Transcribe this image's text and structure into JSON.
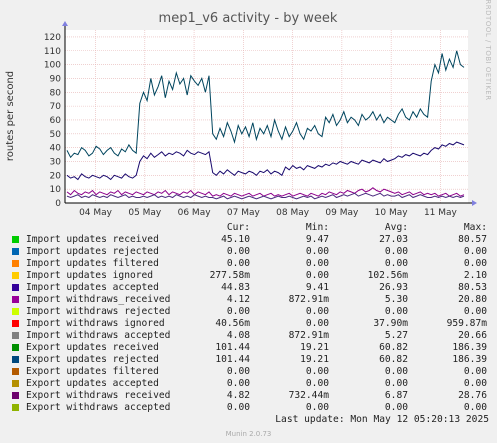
{
  "chart_data": {
    "type": "line",
    "title": "mep1_v6 activity - by week",
    "ylabel": "routes per second",
    "ylim": [
      0,
      125
    ],
    "yticks": [
      0,
      10,
      20,
      30,
      40,
      50,
      60,
      70,
      80,
      90,
      100,
      110,
      120
    ],
    "xticks": [
      "04 May",
      "05 May",
      "06 May",
      "07 May",
      "08 May",
      "09 May",
      "10 May",
      "11 May"
    ],
    "grid": true,
    "series": [
      {
        "name": "Export updates rejected",
        "color": "#00455e",
        "values": [
          38,
          33,
          36,
          35,
          40,
          38,
          34,
          36,
          41,
          39,
          35,
          38,
          40,
          36,
          34,
          39,
          37,
          42,
          38,
          36,
          72,
          80,
          74,
          90,
          78,
          84,
          92,
          76,
          88,
          82,
          94,
          86,
          90,
          78,
          92,
          88,
          85,
          90,
          80,
          92,
          50,
          46,
          54,
          48,
          58,
          52,
          44,
          56,
          50,
          55,
          48,
          58,
          46,
          54,
          50,
          56,
          48,
          60,
          52,
          46,
          55,
          48,
          52,
          58,
          50,
          46,
          54,
          52,
          56,
          50,
          48,
          62,
          58,
          64,
          56,
          60,
          66,
          58,
          62,
          60,
          56,
          64,
          60,
          62,
          66,
          60,
          64,
          58,
          62,
          60,
          58,
          64,
          68,
          62,
          60,
          66,
          62,
          68,
          64,
          62,
          88,
          100,
          94,
          108,
          96,
          104,
          98,
          110,
          100,
          98
        ]
      },
      {
        "name": "Import updates accepted",
        "color": "#1a0a6e",
        "values": [
          20,
          18,
          19,
          17,
          21,
          19,
          18,
          20,
          19,
          18,
          20,
          19,
          17,
          20,
          19,
          18,
          21,
          19,
          18,
          20,
          30,
          34,
          32,
          36,
          33,
          35,
          37,
          34,
          36,
          35,
          37,
          36,
          34,
          38,
          36,
          35,
          37,
          36,
          35,
          37,
          22,
          20,
          23,
          21,
          24,
          22,
          20,
          23,
          22,
          21,
          23,
          22,
          20,
          23,
          22,
          24,
          21,
          23,
          22,
          20,
          26,
          24,
          27,
          25,
          26,
          24,
          27,
          26,
          25,
          27,
          26,
          28,
          27,
          29,
          28,
          30,
          29,
          28,
          30,
          29,
          28,
          31,
          30,
          29,
          31,
          30,
          29,
          32,
          30,
          31,
          32,
          34,
          33,
          35,
          34,
          36,
          35,
          34,
          36,
          35,
          38,
          40,
          39,
          42,
          41,
          43,
          42,
          44,
          43,
          42
        ]
      },
      {
        "name": "Import withdraws_received",
        "color": "#8c008c",
        "values": [
          8,
          6,
          9,
          7,
          6,
          8,
          7,
          9,
          6,
          8,
          7,
          6,
          8,
          7,
          9,
          6,
          8,
          7,
          6,
          8,
          7,
          6,
          8,
          7,
          6,
          8,
          7,
          9,
          6,
          8,
          7,
          6,
          8,
          7,
          9,
          6,
          8,
          7,
          6,
          8,
          5,
          6,
          5,
          7,
          6,
          5,
          7,
          6,
          5,
          6,
          7,
          5,
          6,
          7,
          5,
          6,
          7,
          5,
          6,
          5,
          6,
          7,
          5,
          6,
          7,
          6,
          5,
          7,
          6,
          5,
          7,
          6,
          8,
          7,
          6,
          8,
          7,
          9,
          8,
          7,
          9,
          10,
          8,
          9,
          11,
          9,
          8,
          10,
          9,
          8,
          7,
          8,
          6,
          7,
          8,
          6,
          7,
          8,
          6,
          7,
          6,
          7,
          5,
          6,
          7,
          5,
          6,
          7,
          5,
          6
        ]
      },
      {
        "name": "Export withdraws received",
        "color": "#4a2a7e",
        "values": [
          5,
          4,
          5,
          6,
          4,
          5,
          4,
          6,
          5,
          4,
          5,
          4,
          6,
          5,
          4,
          5,
          6,
          4,
          5,
          4,
          4,
          5,
          4,
          5,
          6,
          4,
          5,
          4,
          5,
          4,
          6,
          5,
          4,
          5,
          4,
          6,
          5,
          4,
          5,
          4,
          4,
          3,
          4,
          5,
          3,
          4,
          5,
          4,
          3,
          4,
          5,
          4,
          3,
          4,
          5,
          4,
          3,
          4,
          5,
          4,
          4,
          5,
          4,
          3,
          4,
          5,
          4,
          5,
          3,
          4,
          5,
          4,
          5,
          6,
          4,
          5,
          6,
          5,
          6,
          7,
          5,
          6,
          7,
          6,
          5,
          6,
          7,
          5,
          6,
          5,
          5,
          6,
          4,
          5,
          6,
          4,
          5,
          6,
          5,
          4,
          4,
          5,
          4,
          5,
          4,
          5,
          4,
          5,
          4,
          5
        ]
      }
    ]
  },
  "side_text": "RRDTOOL / TOBI OETIKER",
  "legend": {
    "headers": {
      "cur": "Cur:",
      "min": "Min:",
      "avg": "Avg:",
      "max": "Max:"
    },
    "rows": [
      {
        "name": "Import updates received",
        "color": "#00cc00",
        "cur": "45.10",
        "min": "9.47",
        "avg": "27.03",
        "max": "80.57"
      },
      {
        "name": "Import updates rejected",
        "color": "#0066b3",
        "cur": "0.00",
        "min": "0.00",
        "avg": "0.00",
        "max": "0.00"
      },
      {
        "name": "Import updates filtered",
        "color": "#ff8000",
        "cur": "0.00",
        "min": "0.00",
        "avg": "0.00",
        "max": "0.00"
      },
      {
        "name": "Import updates ignored",
        "color": "#ffcc00",
        "cur": "277.58m",
        "min": "0.00",
        "avg": "102.56m",
        "max": "2.10"
      },
      {
        "name": "Import updates accepted",
        "color": "#330099",
        "cur": "44.83",
        "min": "9.41",
        "avg": "26.93",
        "max": "80.53"
      },
      {
        "name": "Import withdraws_received",
        "color": "#990099",
        "cur": "4.12",
        "min": "872.91m",
        "avg": "5.30",
        "max": "20.80"
      },
      {
        "name": "Import withdraws rejected",
        "color": "#ccff00",
        "cur": "0.00",
        "min": "0.00",
        "avg": "0.00",
        "max": "0.00"
      },
      {
        "name": "Import withdraws ignored",
        "color": "#ff0000",
        "cur": "40.56m",
        "min": "0.00",
        "avg": "37.90m",
        "max": "959.87m"
      },
      {
        "name": "Import withdraws accepted",
        "color": "#808080",
        "cur": "4.08",
        "min": "872.91m",
        "avg": "5.27",
        "max": "20.66"
      },
      {
        "name": "Export updates received",
        "color": "#008f00",
        "cur": "101.44",
        "min": "19.21",
        "avg": "60.82",
        "max": "186.39"
      },
      {
        "name": "Export updates rejected",
        "color": "#00487d",
        "cur": "101.44",
        "min": "19.21",
        "avg": "60.82",
        "max": "186.39"
      },
      {
        "name": "Export updates filtered",
        "color": "#b35a00",
        "cur": "0.00",
        "min": "0.00",
        "avg": "0.00",
        "max": "0.00"
      },
      {
        "name": "Export updates accepted",
        "color": "#b38f00",
        "cur": "0.00",
        "min": "0.00",
        "avg": "0.00",
        "max": "0.00"
      },
      {
        "name": "Export withdraws received",
        "color": "#6b006b",
        "cur": "4.82",
        "min": "732.44m",
        "avg": "6.87",
        "max": "28.76"
      },
      {
        "name": "Export withdraws accepted",
        "color": "#8fb300",
        "cur": "0.00",
        "min": "0.00",
        "avg": "0.00",
        "max": "0.00"
      }
    ]
  },
  "last_update": "Last update: Mon May 12 05:20:13 2025",
  "footer": "Munin 2.0.73"
}
